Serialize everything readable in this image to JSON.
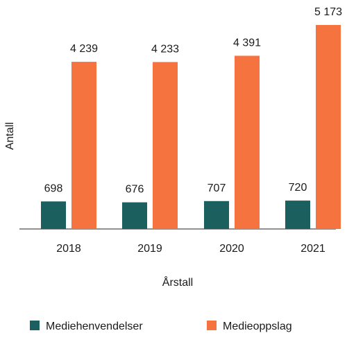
{
  "chart_data": {
    "type": "bar",
    "categories": [
      "2018",
      "2019",
      "2020",
      "2021"
    ],
    "series": [
      {
        "name": "Mediehenvendelser",
        "values": [
          698,
          676,
          707,
          720
        ],
        "labels": [
          "698",
          "676",
          "707",
          "720"
        ],
        "color": "#1c5f5f"
      },
      {
        "name": "Medieoppslag",
        "values": [
          4239,
          4233,
          4391,
          5173
        ],
        "labels": [
          "4 239",
          "4 233",
          "4 391",
          "5 173"
        ],
        "color": "#f5733e"
      }
    ],
    "xlabel": "Årstall",
    "ylabel": "Antall",
    "ylim": [
      0,
      5500
    ],
    "grid": false,
    "legend_position": "bottom"
  }
}
